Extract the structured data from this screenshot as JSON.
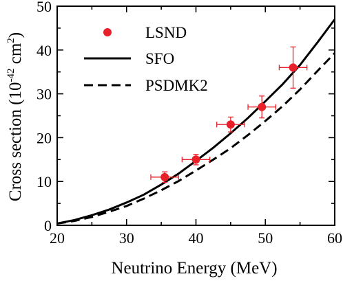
{
  "chart_data": {
    "type": "scatter",
    "xlabel": "Neutrino Energy (MeV)",
    "ylabel": {
      "prefix": "Cross section (10",
      "exp1": "-42",
      "mid": " cm",
      "exp2": "2",
      "suffix": ")"
    },
    "xlim": [
      20,
      60
    ],
    "ylim": [
      0,
      50
    ],
    "x_ticks": [
      "20",
      "30",
      "40",
      "50",
      "60"
    ],
    "y_ticks": [
      "0",
      "10",
      "20",
      "30",
      "40",
      "50"
    ],
    "legend_position": "top-left",
    "series": [
      {
        "name": "LSND",
        "kind": "points",
        "color": "#e8202a",
        "points": [
          {
            "x": 35.5,
            "y": 11.0,
            "xerr": 2.0,
            "yerr": 1.2
          },
          {
            "x": 40.0,
            "y": 15.0,
            "xerr": 2.0,
            "yerr": 1.2
          },
          {
            "x": 45.0,
            "y": 23.0,
            "xerr": 2.0,
            "yerr": 1.7
          },
          {
            "x": 49.5,
            "y": 27.0,
            "xerr": 2.0,
            "yerr": 2.5
          },
          {
            "x": 54.0,
            "y": 36.0,
            "xerr": 2.0,
            "yerr": 4.7
          }
        ]
      },
      {
        "name": "SFO",
        "kind": "line",
        "style": "solid",
        "color": "#000000",
        "x": [
          20,
          22.5,
          25,
          27.5,
          30,
          32.5,
          35,
          37.5,
          40,
          42.5,
          45,
          47.5,
          50,
          52.5,
          55,
          57.5,
          60
        ],
        "y": [
          0.4,
          1.2,
          2.3,
          3.6,
          5.2,
          7.0,
          9.3,
          11.8,
          14.7,
          17.7,
          21.0,
          24.5,
          28.3,
          32.2,
          36.6,
          41.7,
          47.0
        ]
      },
      {
        "name": "PSDMK2",
        "kind": "line",
        "style": "dashed",
        "color": "#000000",
        "x": [
          20,
          22.5,
          25,
          27.5,
          30,
          32.5,
          35,
          37.5,
          40,
          42.5,
          45,
          47.5,
          50,
          52.5,
          55,
          57.5,
          60
        ],
        "y": [
          0.4,
          1.0,
          1.9,
          3.1,
          4.4,
          6.1,
          8.0,
          10.1,
          12.5,
          15.0,
          17.6,
          20.6,
          23.8,
          27.2,
          31.0,
          35.2,
          39.3
        ]
      }
    ]
  }
}
